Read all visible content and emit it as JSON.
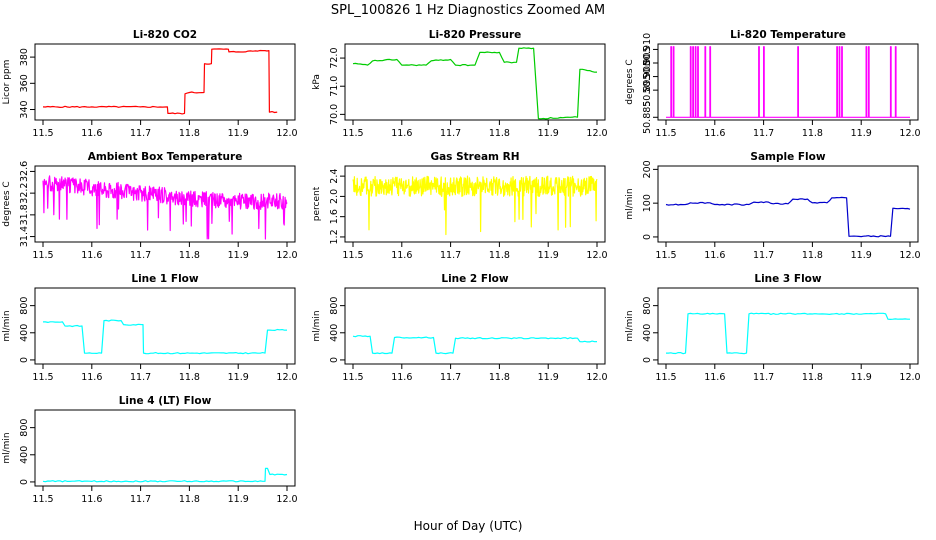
{
  "figure": {
    "title": "SPL_100826  1 Hz Diagnostics Zoomed AM",
    "xlabel": "Hour of Day (UTC)"
  },
  "chart_data": [
    {
      "type": "line",
      "title": "Li-820 CO2",
      "xlabel": "",
      "ylabel": "Licor ppm",
      "color": "#ff0000",
      "xlim": [
        11.5,
        12.0
      ],
      "ylim": [
        332,
        390
      ],
      "xticks": [
        "11.5",
        "11.6",
        "11.7",
        "11.8",
        "11.9",
        "12.0"
      ],
      "yticks": [
        "340",
        "360",
        "380"
      ],
      "series": [
        {
          "name": "CO2",
          "x": [
            11.5,
            11.6,
            11.7,
            11.755,
            11.756,
            11.79,
            11.791,
            11.8,
            11.83,
            11.831,
            11.845,
            11.846,
            11.88,
            11.881,
            11.9,
            11.95,
            11.955,
            11.963,
            11.964,
            11.98
          ],
          "values": [
            342,
            342,
            342,
            342,
            337,
            337,
            352,
            353,
            353,
            375,
            375,
            386,
            386,
            384,
            384,
            385,
            385,
            385,
            338,
            338
          ]
        }
      ]
    },
    {
      "type": "line",
      "title": "Li-820 Pressure",
      "xlabel": "",
      "ylabel": "kPa",
      "color": "#00cc00",
      "xlim": [
        11.5,
        12.0
      ],
      "ylim": [
        69.8,
        72.5
      ],
      "xticks": [
        "11.5",
        "11.6",
        "11.7",
        "11.8",
        "11.9",
        "12.0"
      ],
      "yticks": [
        "70.0",
        "71.0",
        "72.0"
      ],
      "series": [
        {
          "name": "Pressure",
          "x": [
            11.5,
            11.53,
            11.54,
            11.59,
            11.6,
            11.65,
            11.66,
            11.7,
            11.71,
            11.75,
            11.76,
            11.8,
            11.81,
            11.835,
            11.84,
            11.87,
            11.88,
            11.96,
            11.965,
            12.0
          ],
          "values": [
            71.8,
            71.75,
            71.9,
            71.95,
            71.75,
            71.75,
            71.9,
            71.95,
            71.75,
            71.75,
            72.2,
            72.2,
            71.85,
            71.85,
            72.35,
            72.35,
            69.85,
            69.9,
            71.6,
            71.5
          ]
        }
      ]
    },
    {
      "type": "line",
      "title": "Li-820 Temperature",
      "xlabel": "",
      "ylabel": "degrees C",
      "color": "#ff00ff",
      "xlim": [
        11.5,
        12.0
      ],
      "ylim": [
        50.884,
        50.912
      ],
      "xticks": [
        "11.5",
        "11.6",
        "11.7",
        "11.8",
        "11.9",
        "12.0"
      ],
      "yticks": [
        "50.885",
        "50.895",
        "50.900",
        "50.905",
        "50.910"
      ],
      "series": [
        {
          "name": "Temperature",
          "x": [
            11.51,
            11.515,
            11.55,
            11.555,
            11.56,
            11.565,
            11.58,
            11.59,
            11.69,
            11.7,
            11.77,
            11.85,
            11.855,
            11.86,
            11.91,
            11.915,
            11.96,
            11.97
          ],
          "values": [
            50.911,
            50.911,
            50.911,
            50.911,
            50.911,
            50.911,
            50.911,
            50.911,
            50.911,
            50.911,
            50.911,
            50.911,
            50.911,
            50.911,
            50.911,
            50.911,
            50.911,
            50.911
          ],
          "baseline": 50.885
        }
      ]
    },
    {
      "type": "line",
      "title": "Ambient Box Temperature",
      "xlabel": "",
      "ylabel": "degrees C",
      "color": "#ff00ff",
      "xlim": [
        11.5,
        12.0
      ],
      "ylim": [
        31.3,
        32.7
      ],
      "xticks": [
        "11.5",
        "11.6",
        "11.7",
        "11.8",
        "11.9",
        "12.0"
      ],
      "yticks": [
        "31.4",
        "31.8",
        "32.2",
        "32.6"
      ],
      "series": [
        {
          "name": "Box Temp",
          "x": [
            11.5,
            11.6,
            11.7,
            11.8,
            11.9,
            12.0
          ],
          "values": [
            32.4,
            32.3,
            32.2,
            32.1,
            32.05,
            32.05
          ],
          "noise": 0.15
        }
      ]
    },
    {
      "type": "line",
      "title": "Gas Stream RH",
      "xlabel": "",
      "ylabel": "percent",
      "color": "#ffff00",
      "xlim": [
        11.5,
        12.0
      ],
      "ylim": [
        1.1,
        2.6
      ],
      "xticks": [
        "11.5",
        "11.6",
        "11.7",
        "11.8",
        "11.9",
        "12.0"
      ],
      "yticks": [
        "1.2",
        "1.6",
        "2.0",
        "2.4"
      ],
      "series": [
        {
          "name": "RH",
          "x": [
            11.5,
            11.6,
            11.7,
            11.8,
            11.9,
            12.0
          ],
          "values": [
            2.2,
            2.2,
            2.2,
            2.2,
            2.2,
            2.2
          ],
          "noise": 0.2
        }
      ]
    },
    {
      "type": "line",
      "title": "Sample Flow",
      "xlabel": "",
      "ylabel": "ml/min",
      "color": "#0000cc",
      "xlim": [
        11.5,
        12.0
      ],
      "ylim": [
        -15,
        210
      ],
      "xticks": [
        "11.5",
        "11.6",
        "11.7",
        "11.8",
        "11.9",
        "12.0"
      ],
      "yticks": [
        "0",
        "100",
        "200"
      ],
      "series": [
        {
          "name": "Sample Flow",
          "x": [
            11.5,
            11.54,
            11.55,
            11.59,
            11.6,
            11.67,
            11.68,
            11.71,
            11.72,
            11.75,
            11.76,
            11.79,
            11.8,
            11.83,
            11.84,
            11.87,
            11.875,
            11.96,
            11.965,
            12.0
          ],
          "values": [
            96,
            96,
            101,
            101,
            96,
            96,
            103,
            103,
            98,
            98,
            112,
            112,
            101,
            101,
            116,
            116,
            2,
            2,
            85,
            82
          ]
        }
      ]
    },
    {
      "type": "line",
      "title": "Line 1 Flow",
      "xlabel": "",
      "ylabel": "ml/min",
      "color": "#00ffff",
      "xlim": [
        11.5,
        12.0
      ],
      "ylim": [
        -60,
        1060
      ],
      "xticks": [
        "11.5",
        "11.6",
        "11.7",
        "11.8",
        "11.9",
        "12.0"
      ],
      "yticks": [
        "0",
        "400",
        "800"
      ],
      "series": [
        {
          "name": "Line 1",
          "x": [
            11.5,
            11.54,
            11.545,
            11.58,
            11.585,
            11.62,
            11.625,
            11.66,
            11.665,
            11.705,
            11.706,
            11.955,
            11.96,
            12.0
          ],
          "values": [
            560,
            560,
            500,
            500,
            100,
            100,
            580,
            580,
            520,
            520,
            100,
            100,
            440,
            440
          ]
        }
      ]
    },
    {
      "type": "line",
      "title": "Line 2 Flow",
      "xlabel": "",
      "ylabel": "ml/min",
      "color": "#00ffff",
      "xlim": [
        11.5,
        12.0
      ],
      "ylim": [
        -60,
        1060
      ],
      "xticks": [
        "11.5",
        "11.6",
        "11.7",
        "11.8",
        "11.9",
        "12.0"
      ],
      "yticks": [
        "0",
        "400",
        "800"
      ],
      "series": [
        {
          "name": "Line 2",
          "x": [
            11.5,
            11.535,
            11.54,
            11.58,
            11.585,
            11.665,
            11.67,
            11.705,
            11.71,
            11.96,
            11.965,
            12.0
          ],
          "values": [
            350,
            350,
            100,
            100,
            330,
            330,
            100,
            100,
            320,
            320,
            270,
            270
          ]
        }
      ]
    },
    {
      "type": "line",
      "title": "Line 3 Flow",
      "xlabel": "",
      "ylabel": "ml/min",
      "color": "#00ffff",
      "xlim": [
        11.5,
        12.0
      ],
      "ylim": [
        -60,
        1060
      ],
      "xticks": [
        "11.5",
        "11.6",
        "11.7",
        "11.8",
        "11.9",
        "12.0"
      ],
      "yticks": [
        "0",
        "400",
        "800"
      ],
      "series": [
        {
          "name": "Line 3",
          "x": [
            11.5,
            11.54,
            11.545,
            11.62,
            11.625,
            11.665,
            11.67,
            11.95,
            11.955,
            12.0
          ],
          "values": [
            100,
            100,
            680,
            680,
            100,
            100,
            680,
            680,
            600,
            600
          ]
        }
      ]
    },
    {
      "type": "line",
      "title": "Line 4 (LT) Flow",
      "xlabel": "",
      "ylabel": "ml/min",
      "color": "#00ffff",
      "xlim": [
        11.5,
        12.0
      ],
      "ylim": [
        -60,
        1060
      ],
      "xticks": [
        "11.5",
        "11.6",
        "11.7",
        "11.8",
        "11.9",
        "12.0"
      ],
      "yticks": [
        "0",
        "400",
        "800"
      ],
      "series": [
        {
          "name": "Line 4",
          "x": [
            11.5,
            11.955,
            11.956,
            11.96,
            11.965,
            12.0
          ],
          "values": [
            10,
            10,
            200,
            200,
            110,
            110
          ]
        }
      ]
    }
  ]
}
